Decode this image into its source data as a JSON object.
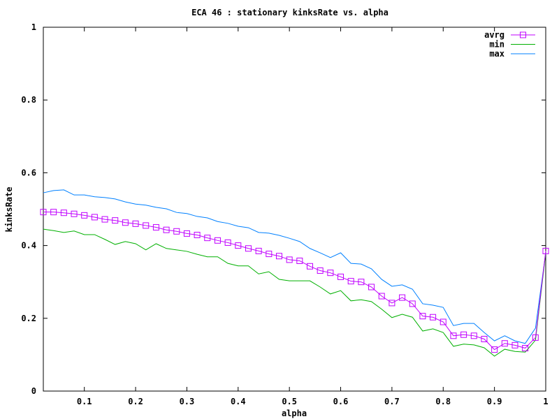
{
  "chart_data": {
    "type": "line",
    "title": "ECA 46 : stationary kinksRate vs. alpha",
    "xlabel": "alpha",
    "ylabel": "kinksRate",
    "xlim": [
      0.02,
      1
    ],
    "ylim": [
      0,
      1
    ],
    "xticks": [
      "0.1",
      "0.2",
      "0.3",
      "0.4",
      "0.5",
      "0.6",
      "0.7",
      "0.8",
      "0.9",
      "1"
    ],
    "yticks": [
      "0",
      "0.2",
      "0.4",
      "0.6",
      "0.8",
      "1"
    ],
    "legend_position": "top-right",
    "x": [
      0.02,
      0.04,
      0.06,
      0.08,
      0.1,
      0.12,
      0.14,
      0.16,
      0.18,
      0.2,
      0.22,
      0.24,
      0.26,
      0.28,
      0.3,
      0.32,
      0.34,
      0.36,
      0.38,
      0.4,
      0.42,
      0.44,
      0.46,
      0.48,
      0.5,
      0.52,
      0.54,
      0.56,
      0.58,
      0.6,
      0.62,
      0.64,
      0.66,
      0.68,
      0.7,
      0.72,
      0.74,
      0.76,
      0.78,
      0.8,
      0.82,
      0.84,
      0.86,
      0.88,
      0.9,
      0.92,
      0.94,
      0.96,
      0.98,
      1.0
    ],
    "series": [
      {
        "name": "avrg",
        "color": "#c000ff",
        "marker": "square",
        "values": [
          0.492,
          0.492,
          0.49,
          0.487,
          0.483,
          0.478,
          0.472,
          0.469,
          0.463,
          0.46,
          0.455,
          0.45,
          0.443,
          0.439,
          0.433,
          0.429,
          0.421,
          0.414,
          0.408,
          0.4,
          0.392,
          0.385,
          0.377,
          0.371,
          0.361,
          0.358,
          0.343,
          0.331,
          0.325,
          0.314,
          0.302,
          0.3,
          0.286,
          0.261,
          0.242,
          0.257,
          0.24,
          0.206,
          0.203,
          0.19,
          0.152,
          0.155,
          0.152,
          0.143,
          0.114,
          0.131,
          0.126,
          0.118,
          0.147,
          0.385
        ]
      },
      {
        "name": "min",
        "color": "#00b000",
        "marker": "none",
        "values": [
          0.445,
          0.441,
          0.436,
          0.44,
          0.43,
          0.43,
          0.417,
          0.403,
          0.411,
          0.405,
          0.388,
          0.405,
          0.392,
          0.388,
          0.384,
          0.376,
          0.369,
          0.369,
          0.351,
          0.344,
          0.344,
          0.322,
          0.328,
          0.307,
          0.303,
          0.303,
          0.303,
          0.286,
          0.267,
          0.276,
          0.248,
          0.251,
          0.246,
          0.225,
          0.202,
          0.211,
          0.203,
          0.165,
          0.171,
          0.161,
          0.123,
          0.129,
          0.127,
          0.119,
          0.096,
          0.115,
          0.109,
          0.107,
          0.14,
          0.38
        ]
      },
      {
        "name": "max",
        "color": "#0080ff",
        "marker": "none",
        "values": [
          0.545,
          0.551,
          0.553,
          0.539,
          0.539,
          0.534,
          0.532,
          0.528,
          0.52,
          0.514,
          0.511,
          0.505,
          0.501,
          0.491,
          0.488,
          0.48,
          0.476,
          0.466,
          0.461,
          0.453,
          0.449,
          0.436,
          0.434,
          0.428,
          0.42,
          0.411,
          0.392,
          0.38,
          0.367,
          0.38,
          0.351,
          0.349,
          0.336,
          0.307,
          0.288,
          0.292,
          0.28,
          0.24,
          0.236,
          0.23,
          0.18,
          0.186,
          0.186,
          0.161,
          0.138,
          0.152,
          0.138,
          0.131,
          0.173,
          0.38
        ]
      }
    ]
  }
}
